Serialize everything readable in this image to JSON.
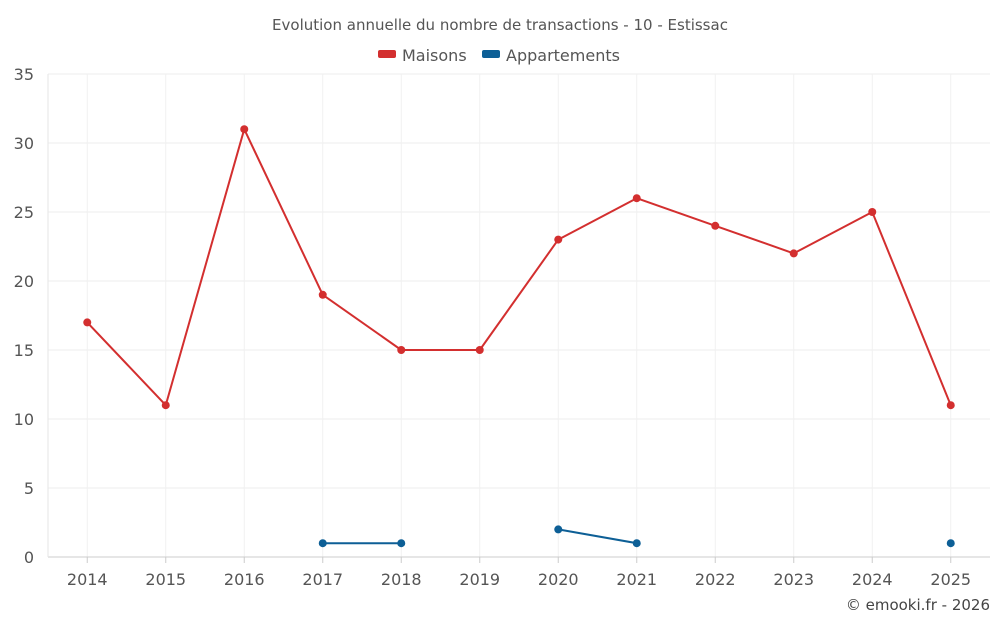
{
  "chart_data": {
    "type": "line",
    "title": "Evolution annuelle du nombre de transactions - 10 - Estissac",
    "categories": [
      "2014",
      "2015",
      "2016",
      "2017",
      "2018",
      "2019",
      "2020",
      "2021",
      "2022",
      "2023",
      "2024",
      "2025"
    ],
    "series": [
      {
        "name": "Maisons",
        "color": "#d32f2f",
        "values": [
          17,
          11,
          31,
          19,
          15,
          15,
          23,
          26,
          24,
          22,
          25,
          11
        ]
      },
      {
        "name": "Appartements",
        "color": "#0d5f96",
        "values": [
          null,
          null,
          null,
          1,
          1,
          null,
          2,
          1,
          null,
          null,
          null,
          1
        ]
      }
    ],
    "ylim": [
      0,
      35
    ],
    "yticks": [
      0,
      5,
      10,
      15,
      20,
      25,
      30,
      35
    ],
    "legend_position": "top-center",
    "grid": true
  },
  "credit": "© emooki.fr - 2026"
}
